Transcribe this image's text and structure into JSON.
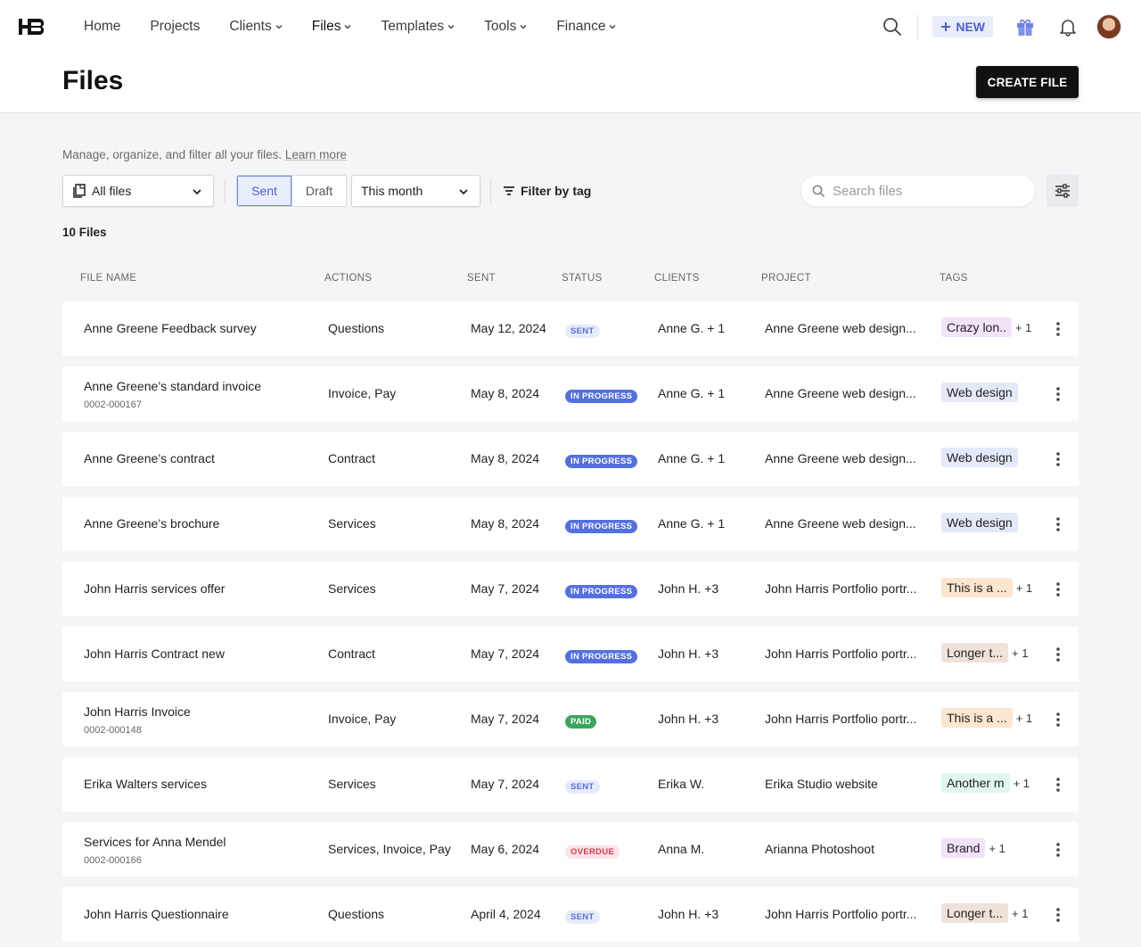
{
  "nav": {
    "items": [
      {
        "label": "Home",
        "dropdown": false
      },
      {
        "label": "Projects",
        "dropdown": false
      },
      {
        "label": "Clients",
        "dropdown": true
      },
      {
        "label": "Files",
        "dropdown": true,
        "active": true
      },
      {
        "label": "Templates",
        "dropdown": true
      },
      {
        "label": "Tools",
        "dropdown": true
      },
      {
        "label": "Finance",
        "dropdown": true
      }
    ],
    "new_label": "NEW",
    "icons": [
      "search-icon",
      "gift-icon",
      "bell-icon",
      "avatar"
    ]
  },
  "header": {
    "title": "Files",
    "create_label": "CREATE FILE"
  },
  "subtitle": {
    "text": "Manage, organize, and filter all your files.",
    "link": "Learn more"
  },
  "filters": {
    "type_select": "All files",
    "segments": [
      "Sent",
      "Draft"
    ],
    "active_segment": "Sent",
    "period_select": "This month",
    "tag_filter": "Filter by tag",
    "search_placeholder": "Search files"
  },
  "count_label": "10 Files",
  "columns": [
    "FILE NAME",
    "ACTIONS",
    "SENT",
    "STATUS",
    "CLIENTS",
    "PROJECT",
    "TAGS"
  ],
  "colors": {
    "accent": "#4a5fd6",
    "status_sent_bg": "#e6ebfb",
    "status_sent_fg": "#5a70d8",
    "status_inprogress_bg": "#5470e0",
    "status_paid_bg": "#3ba55d",
    "status_overdue_bg": "#fbe3e6",
    "status_overdue_fg": "#d13a50"
  },
  "rows": [
    {
      "name": "Anne Greene Feedback survey",
      "number": "",
      "actions": "Questions",
      "sent": "May 12, 2024",
      "status": "SENT",
      "status_kind": "sent",
      "clients": "Anne G. + 1",
      "project": "Anne Greene web design...",
      "tag": "Crazy lon..",
      "tag_color": "#f3e3fa",
      "extra": "+ 1"
    },
    {
      "name": "Anne Greene’s standard invoice",
      "number": "0002-000167",
      "actions": "Invoice, Pay",
      "sent": "May 8, 2024",
      "status": "IN PROGRESS",
      "status_kind": "inprogress",
      "clients": "Anne G. + 1",
      "project": "Anne Greene web design...",
      "tag": "Web design",
      "tag_color": "#e3e9f9",
      "extra": ""
    },
    {
      "name": "Anne Greene’s contract",
      "number": "",
      "actions": "Contract",
      "sent": "May 8, 2024",
      "status": "IN PROGRESS",
      "status_kind": "inprogress",
      "clients": "Anne G. + 1",
      "project": "Anne Greene web design...",
      "tag": "Web design",
      "tag_color": "#e3e9f9",
      "extra": ""
    },
    {
      "name": "Anne Greene’s brochure",
      "number": "",
      "actions": "Services",
      "sent": "May 8, 2024",
      "status": "IN PROGRESS",
      "status_kind": "inprogress",
      "clients": "Anne G. + 1",
      "project": "Anne Greene web design...",
      "tag": "Web design",
      "tag_color": "#e3e9f9",
      "extra": ""
    },
    {
      "name": "John Harris services offer",
      "number": "",
      "actions": "Services",
      "sent": "May 7, 2024",
      "status": "IN PROGRESS",
      "status_kind": "inprogress",
      "clients": "John H. +3",
      "project": "John Harris Portfolio portr...",
      "tag": "This is a ...",
      "tag_color": "#fde6cf",
      "extra": "+ 1"
    },
    {
      "name": "John Harris Contract new",
      "number": "",
      "actions": "Contract",
      "sent": "May 7, 2024",
      "status": "IN PROGRESS",
      "status_kind": "inprogress",
      "clients": "John H. +3",
      "project": "John Harris Portfolio portr...",
      "tag": "Longer t...",
      "tag_color": "#f0e2da",
      "extra": "+ 1"
    },
    {
      "name": "John Harris Invoice",
      "number": "0002-000148",
      "actions": "Invoice, Pay",
      "sent": "May 7, 2024",
      "status": "PAID",
      "status_kind": "paid",
      "clients": "John H. +3",
      "project": "John Harris Portfolio portr...",
      "tag": "This is a ...",
      "tag_color": "#fde6cf",
      "extra": "+ 1"
    },
    {
      "name": "Erika Walters services",
      "number": "",
      "actions": "Services",
      "sent": "May 7, 2024",
      "status": "SENT",
      "status_kind": "sent",
      "clients": "Erika W.",
      "project": "Erika Studio website",
      "tag": "Another m",
      "tag_color": "#e1f6ef",
      "extra": "+ 1"
    },
    {
      "name": "Services for Anna Mendel",
      "number": "0002-000166",
      "actions": "Services, Invoice, Pay",
      "sent": "May 6, 2024",
      "status": "OVERDUE",
      "status_kind": "overdue",
      "clients": "Anna M.",
      "project": "Arianna Photoshoot",
      "tag": "Brand",
      "tag_color": "#f1e2fa",
      "extra": "+ 1"
    },
    {
      "name": "John Harris Questionnaire",
      "number": "",
      "actions": "Questions",
      "sent": "April 4, 2024",
      "status": "SENT",
      "status_kind": "sent",
      "clients": "John H. +3",
      "project": "John Harris Portfolio portr...",
      "tag": "Longer t...",
      "tag_color": "#f0e2da",
      "extra": "+ 1"
    }
  ]
}
